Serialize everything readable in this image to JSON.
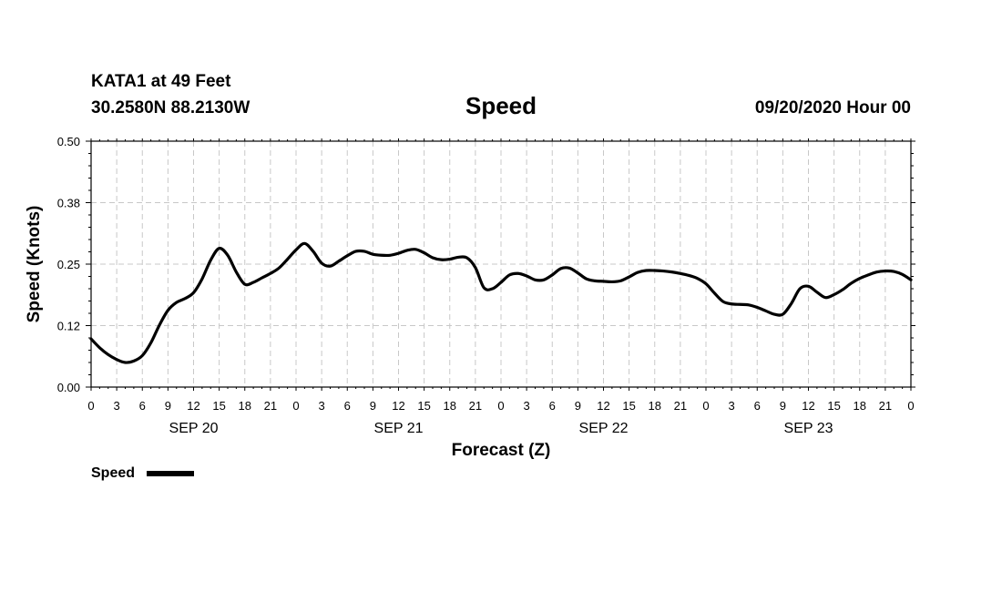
{
  "header": {
    "station": "KATA1 at 49 Feet",
    "coords": "30.2580N 88.2130W",
    "date": "09/20/2020 Hour 00"
  },
  "legend": {
    "label": "Speed"
  },
  "chart_data": {
    "type": "line",
    "title": "Speed",
    "xlabel": "Forecast (Z)",
    "ylabel": "Speed (Knots)",
    "ylim": [
      0,
      0.5
    ],
    "yticks": [
      0.0,
      0.125,
      0.25,
      0.375,
      0.5
    ],
    "ytick_labels": [
      "0.00",
      "0.12",
      "0.25",
      "0.38",
      "0.50"
    ],
    "xlim": [
      0,
      96
    ],
    "xtick_labels": [
      "0",
      "3",
      "6",
      "9",
      "12",
      "15",
      "18",
      "21",
      "0",
      "3",
      "6",
      "9",
      "12",
      "15",
      "18",
      "21",
      "0",
      "3",
      "6",
      "9",
      "12",
      "15",
      "18",
      "21",
      "0",
      "3",
      "6",
      "9",
      "12",
      "15",
      "18",
      "21",
      "0"
    ],
    "day_labels": [
      {
        "label": "SEP 20",
        "hour": 12
      },
      {
        "label": "SEP 21",
        "hour": 36
      },
      {
        "label": "SEP 22",
        "hour": 60
      },
      {
        "label": "SEP 23",
        "hour": 84
      }
    ],
    "grid": true,
    "legend_position": "bottom-left",
    "series": [
      {
        "name": "Speed",
        "color": "#000000",
        "x": [
          0,
          1,
          2,
          3,
          4,
          5,
          6,
          7,
          8,
          9,
          10,
          11,
          12,
          13,
          14,
          15,
          16,
          17,
          18,
          19,
          20,
          21,
          22,
          23,
          24,
          25,
          26,
          27,
          28,
          29,
          30,
          31,
          32,
          33,
          34,
          35,
          36,
          37,
          38,
          39,
          40,
          41,
          42,
          43,
          44,
          45,
          46,
          47,
          48,
          49,
          50,
          51,
          52,
          53,
          54,
          55,
          56,
          57,
          58,
          59,
          60,
          61,
          62,
          63,
          64,
          65,
          66,
          67,
          68,
          69,
          70,
          71,
          72,
          73,
          74,
          75,
          76,
          77,
          78,
          79,
          80,
          81,
          82,
          83,
          84,
          85,
          86,
          87,
          88,
          89,
          90,
          91,
          92,
          93,
          94,
          95,
          96
        ],
        "y": [
          0.098,
          0.08,
          0.066,
          0.056,
          0.05,
          0.053,
          0.064,
          0.09,
          0.126,
          0.156,
          0.172,
          0.18,
          0.192,
          0.22,
          0.258,
          0.282,
          0.268,
          0.234,
          0.209,
          0.213,
          0.222,
          0.231,
          0.242,
          0.26,
          0.279,
          0.292,
          0.276,
          0.252,
          0.246,
          0.256,
          0.267,
          0.276,
          0.276,
          0.27,
          0.268,
          0.268,
          0.272,
          0.278,
          0.28,
          0.273,
          0.263,
          0.259,
          0.26,
          0.264,
          0.263,
          0.243,
          0.202,
          0.2,
          0.213,
          0.228,
          0.231,
          0.226,
          0.218,
          0.218,
          0.228,
          0.241,
          0.242,
          0.232,
          0.22,
          0.216,
          0.215,
          0.214,
          0.216,
          0.224,
          0.233,
          0.237,
          0.237,
          0.236,
          0.234,
          0.231,
          0.227,
          0.221,
          0.21,
          0.191,
          0.174,
          0.169,
          0.168,
          0.167,
          0.162,
          0.155,
          0.148,
          0.148,
          0.17,
          0.2,
          0.205,
          0.193,
          0.182,
          0.188,
          0.198,
          0.211,
          0.221,
          0.228,
          0.234,
          0.236,
          0.235,
          0.229,
          0.218
        ]
      }
    ]
  }
}
